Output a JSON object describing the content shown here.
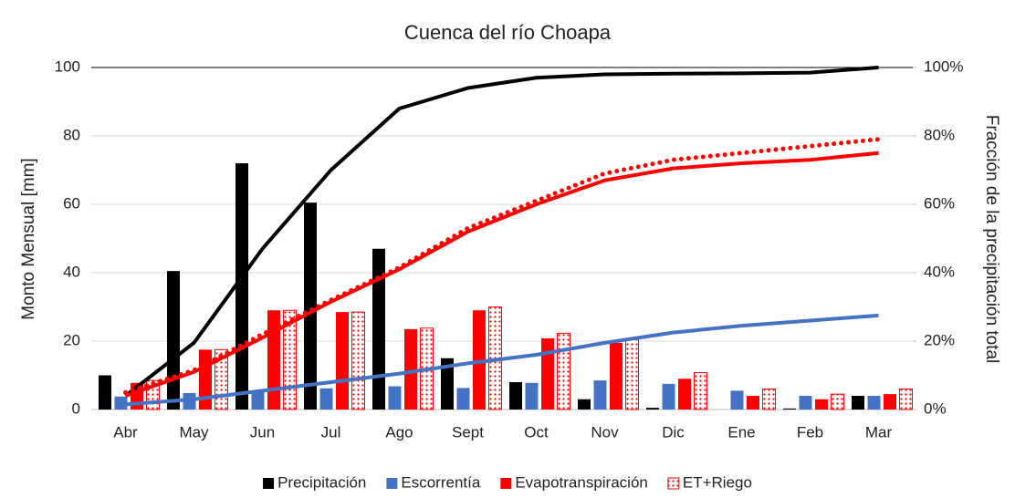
{
  "chart_data": {
    "type": "bar-line",
    "title": "Cuenca del río Choapa",
    "ylabel": "Monto Mensual [mm]",
    "y2label": "Fracción de la precipitación total",
    "categories": [
      "Abr",
      "May",
      "Jun",
      "Jul",
      "Ago",
      "Sept",
      "Oct",
      "Nov",
      "Dic",
      "Ene",
      "Feb",
      "Mar"
    ],
    "ylim": [
      0,
      100
    ],
    "yticks": [
      0,
      20,
      40,
      60,
      80,
      100
    ],
    "y2lim": [
      0,
      100
    ],
    "y2ticks": [
      {
        "value": 0,
        "label": "0%"
      },
      {
        "value": 20,
        "label": "20%"
      },
      {
        "value": 40,
        "label": "40%"
      },
      {
        "value": 60,
        "label": "60%"
      },
      {
        "value": 80,
        "label": "80%"
      },
      {
        "value": 100,
        "label": "100%"
      }
    ],
    "grid": true,
    "legend": "bottom",
    "series": [
      {
        "name": "Precipitación",
        "color": "#000000",
        "values": [
          10,
          40.5,
          72,
          60.5,
          47,
          15,
          8,
          3,
          0.5,
          0,
          0.3,
          4
        ]
      },
      {
        "name": "Escorrentía",
        "color": "#4472c4",
        "values": [
          3.8,
          4.8,
          5.5,
          6.2,
          6.8,
          6.3,
          7.8,
          8.5,
          7.5,
          5.5,
          4,
          4
        ]
      },
      {
        "name": "Evapotranspiración",
        "color": "#ff0000",
        "values": [
          7.8,
          17.5,
          29,
          28.5,
          23.5,
          29,
          20.8,
          19.5,
          9,
          4,
          3,
          4.5
        ]
      },
      {
        "name": "ET+Riego",
        "color": "#ff0000",
        "pattern": "dotted",
        "values": [
          8.5,
          17.5,
          29,
          28.5,
          23.8,
          30,
          22.3,
          20.5,
          10.8,
          6,
          4.5,
          6
        ]
      }
    ],
    "lines": [
      {
        "axis": "y2",
        "color": "#000000",
        "values": [
          4,
          19.5,
          47,
          70,
          88,
          94,
          97,
          98,
          98.2,
          98.3,
          98.5,
          100
        ]
      },
      {
        "axis": "y2",
        "color": "#ff0000",
        "values": [
          4,
          11,
          21,
          31.5,
          41,
          52,
          60,
          67,
          70.5,
          72,
          73,
          75
        ]
      },
      {
        "axis": "y2",
        "color": "#ff0000",
        "dash": "dotted",
        "values": [
          5,
          11.5,
          22,
          32,
          41.5,
          53,
          61,
          69,
          73,
          75,
          77,
          79
        ]
      },
      {
        "axis": "y2",
        "color": "#4472c4",
        "values": [
          1.5,
          3,
          5.5,
          8,
          10.5,
          13.5,
          16,
          19.5,
          22.5,
          24.5,
          26,
          27.5
        ]
      }
    ]
  }
}
